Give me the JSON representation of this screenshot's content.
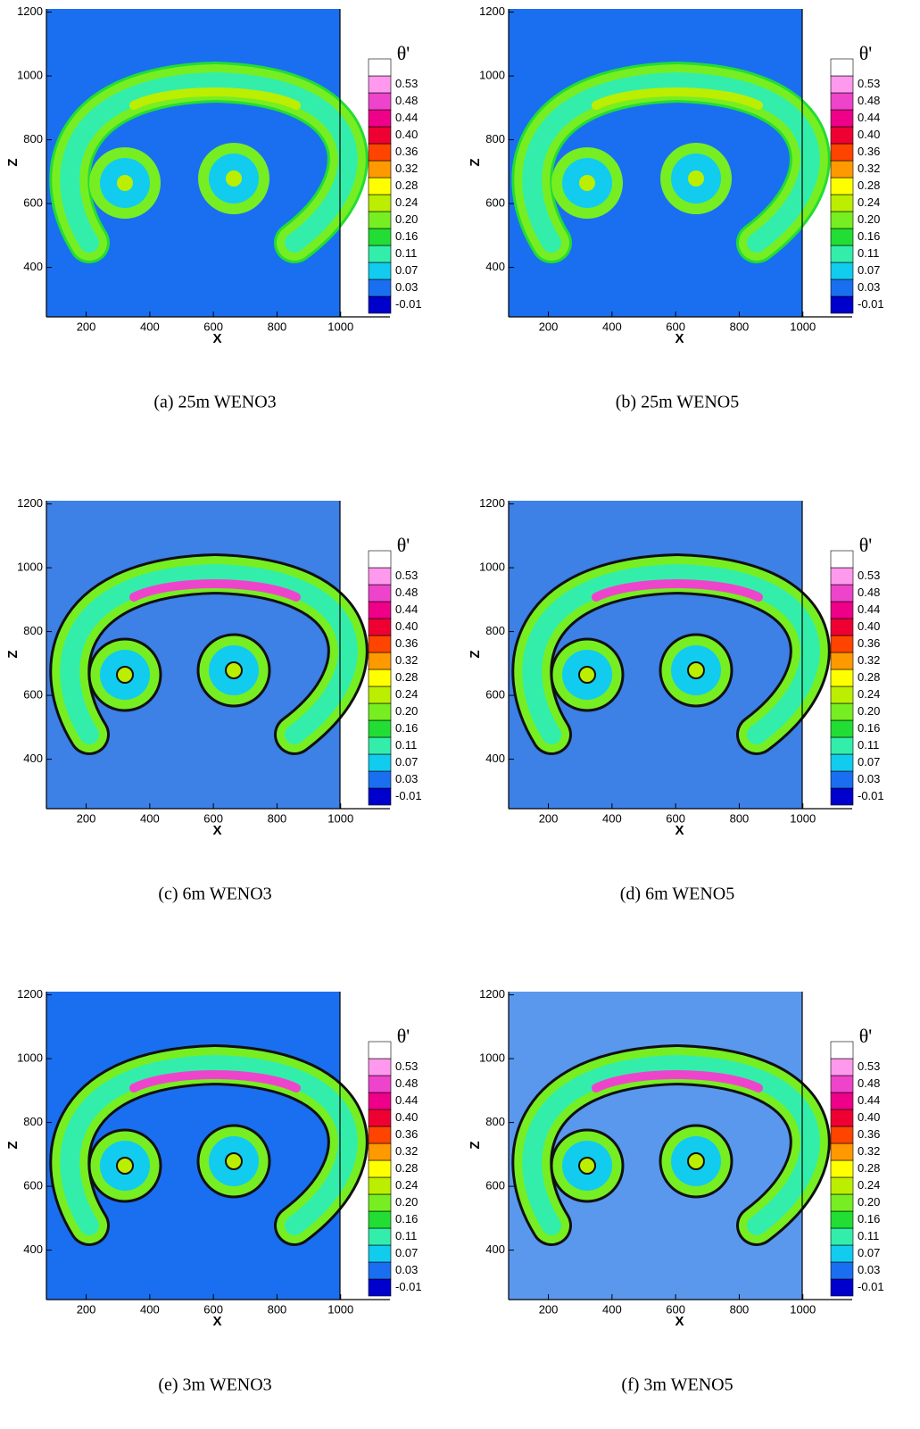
{
  "chart_data": [
    {
      "type": "contour",
      "caption": "(a) 25m WENO3",
      "xlabel": "X",
      "ylabel": "Z",
      "xlim": [
        75,
        1155
      ],
      "ylim": [
        245,
        1210
      ],
      "xticks": [
        200,
        400,
        600,
        800,
        1000
      ],
      "yticks": [
        400,
        600,
        800,
        1000,
        1200
      ],
      "background": "#1a6ff0",
      "contour_lines": false,
      "colorbar": {
        "title": "θ'",
        "levels": [
          -0.01,
          0.03,
          0.07,
          0.11,
          0.16,
          {
            "value": 0.2,
            "label": "0.20"
          },
          0.24,
          0.28,
          0.32,
          0.36,
          {
            "value": 0.4,
            "label": "0.40"
          },
          0.44,
          0.48,
          0.53
        ],
        "colors": [
          "#0000cc",
          "#1a6ff0",
          "#11ccee",
          "#33eeaa",
          "#22dd33",
          "#77ee22",
          "#bbee00",
          "#ffff00",
          "#ff9900",
          "#ff4400",
          "#ee0033",
          "#ee0088",
          "#ee44cc",
          "#ff99ee",
          "#ffffff"
        ]
      }
    },
    {
      "type": "contour",
      "caption": "(b) 25m WENO5",
      "xlabel": "X",
      "ylabel": "Z",
      "xlim": [
        75,
        1155
      ],
      "ylim": [
        245,
        1210
      ],
      "xticks": [
        200,
        400,
        600,
        800,
        1000
      ],
      "yticks": [
        400,
        600,
        800,
        1000,
        1200
      ],
      "background": "#1a6ff0",
      "contour_lines": false,
      "colorbar": {
        "title": "θ'",
        "levels": [
          -0.01,
          0.03,
          0.07,
          0.11,
          0.16,
          {
            "value": 0.2,
            "label": "0.20"
          },
          0.24,
          0.28,
          0.32,
          0.36,
          {
            "value": 0.4,
            "label": "0.40"
          },
          0.44,
          0.48,
          0.53
        ],
        "colors": [
          "#0000cc",
          "#1a6ff0",
          "#11ccee",
          "#33eeaa",
          "#22dd33",
          "#77ee22",
          "#bbee00",
          "#ffff00",
          "#ff9900",
          "#ff4400",
          "#ee0033",
          "#ee0088",
          "#ee44cc",
          "#ff99ee",
          "#ffffff"
        ]
      }
    },
    {
      "type": "contour",
      "caption": "(c) 6m WENO3",
      "xlabel": "X",
      "ylabel": "Z",
      "xlim": [
        75,
        1155
      ],
      "ylim": [
        245,
        1210
      ],
      "xticks": [
        200,
        400,
        600,
        800,
        1000
      ],
      "yticks": [
        400,
        600,
        800,
        1000,
        1200
      ],
      "background": "#3d80e6",
      "contour_lines": true,
      "colorbar": {
        "title": "θ'",
        "levels": [
          -0.01,
          0.03,
          0.07,
          0.11,
          0.16,
          {
            "value": 0.2,
            "label": "0.20"
          },
          0.24,
          0.28,
          0.32,
          0.36,
          {
            "value": 0.4,
            "label": "0.40"
          },
          0.44,
          0.48,
          0.53
        ],
        "colors": [
          "#0000cc",
          "#1a6ff0",
          "#11ccee",
          "#33eeaa",
          "#22dd33",
          "#77ee22",
          "#bbee00",
          "#ffff00",
          "#ff9900",
          "#ff4400",
          "#ee0033",
          "#ee0088",
          "#ee44cc",
          "#ff99ee",
          "#ffffff"
        ]
      }
    },
    {
      "type": "contour",
      "caption": "(d) 6m WENO5",
      "xlabel": "X",
      "ylabel": "Z",
      "xlim": [
        75,
        1155
      ],
      "ylim": [
        245,
        1210
      ],
      "xticks": [
        200,
        400,
        600,
        800,
        1000
      ],
      "yticks": [
        400,
        600,
        800,
        1000,
        1200
      ],
      "background": "#3d80e6",
      "contour_lines": true,
      "colorbar": {
        "title": "θ'",
        "levels": [
          -0.01,
          0.03,
          0.07,
          0.11,
          0.16,
          {
            "value": 0.2,
            "label": "0.20"
          },
          0.24,
          0.28,
          0.32,
          0.36,
          {
            "value": 0.4,
            "label": "0.40"
          },
          0.44,
          0.48,
          0.53
        ],
        "colors": [
          "#0000cc",
          "#1a6ff0",
          "#11ccee",
          "#33eeaa",
          "#22dd33",
          "#77ee22",
          "#bbee00",
          "#ffff00",
          "#ff9900",
          "#ff4400",
          "#ee0033",
          "#ee0088",
          "#ee44cc",
          "#ff99ee",
          "#ffffff"
        ]
      }
    },
    {
      "type": "contour",
      "caption": "(e) 3m WENO3",
      "xlabel": "X",
      "ylabel": "Z",
      "xlim": [
        75,
        1155
      ],
      "ylim": [
        245,
        1210
      ],
      "xticks": [
        200,
        400,
        600,
        800,
        1000
      ],
      "yticks": [
        400,
        600,
        800,
        1000,
        1200
      ],
      "background": "#1a6ff0",
      "contour_lines": true,
      "colorbar": {
        "title": "θ'",
        "levels": [
          -0.01,
          0.03,
          0.07,
          0.11,
          0.16,
          {
            "value": 0.2,
            "label": "0.20"
          },
          0.24,
          0.28,
          0.32,
          0.36,
          {
            "value": 0.4,
            "label": "0.40"
          },
          0.44,
          0.48,
          0.53
        ],
        "colors": [
          "#0000cc",
          "#1a6ff0",
          "#11ccee",
          "#33eeaa",
          "#22dd33",
          "#77ee22",
          "#bbee00",
          "#ffff00",
          "#ff9900",
          "#ff4400",
          "#ee0033",
          "#ee0088",
          "#ee44cc",
          "#ff99ee",
          "#ffffff"
        ]
      }
    },
    {
      "type": "contour",
      "caption": "(f) 3m WENO5",
      "xlabel": "X",
      "ylabel": "Z",
      "xlim": [
        75,
        1155
      ],
      "ylim": [
        245,
        1210
      ],
      "xticks": [
        200,
        400,
        600,
        800,
        1000
      ],
      "yticks": [
        400,
        600,
        800,
        1000,
        1200
      ],
      "background": "#5a98ee",
      "contour_lines": true,
      "colorbar": {
        "title": "θ'",
        "levels": [
          -0.01,
          0.03,
          0.07,
          0.11,
          0.16,
          {
            "value": 0.2,
            "label": "0.20"
          },
          0.24,
          0.28,
          0.32,
          0.36,
          {
            "value": 0.4,
            "label": "0.40"
          },
          0.44,
          0.48,
          0.53
        ],
        "colors": [
          "#0000cc",
          "#1a6ff0",
          "#11ccee",
          "#33eeaa",
          "#22dd33",
          "#77ee22",
          "#bbee00",
          "#ffff00",
          "#ff9900",
          "#ff4400",
          "#ee0033",
          "#ee0088",
          "#ee44cc",
          "#ff99ee",
          "#ffffff"
        ]
      }
    }
  ]
}
